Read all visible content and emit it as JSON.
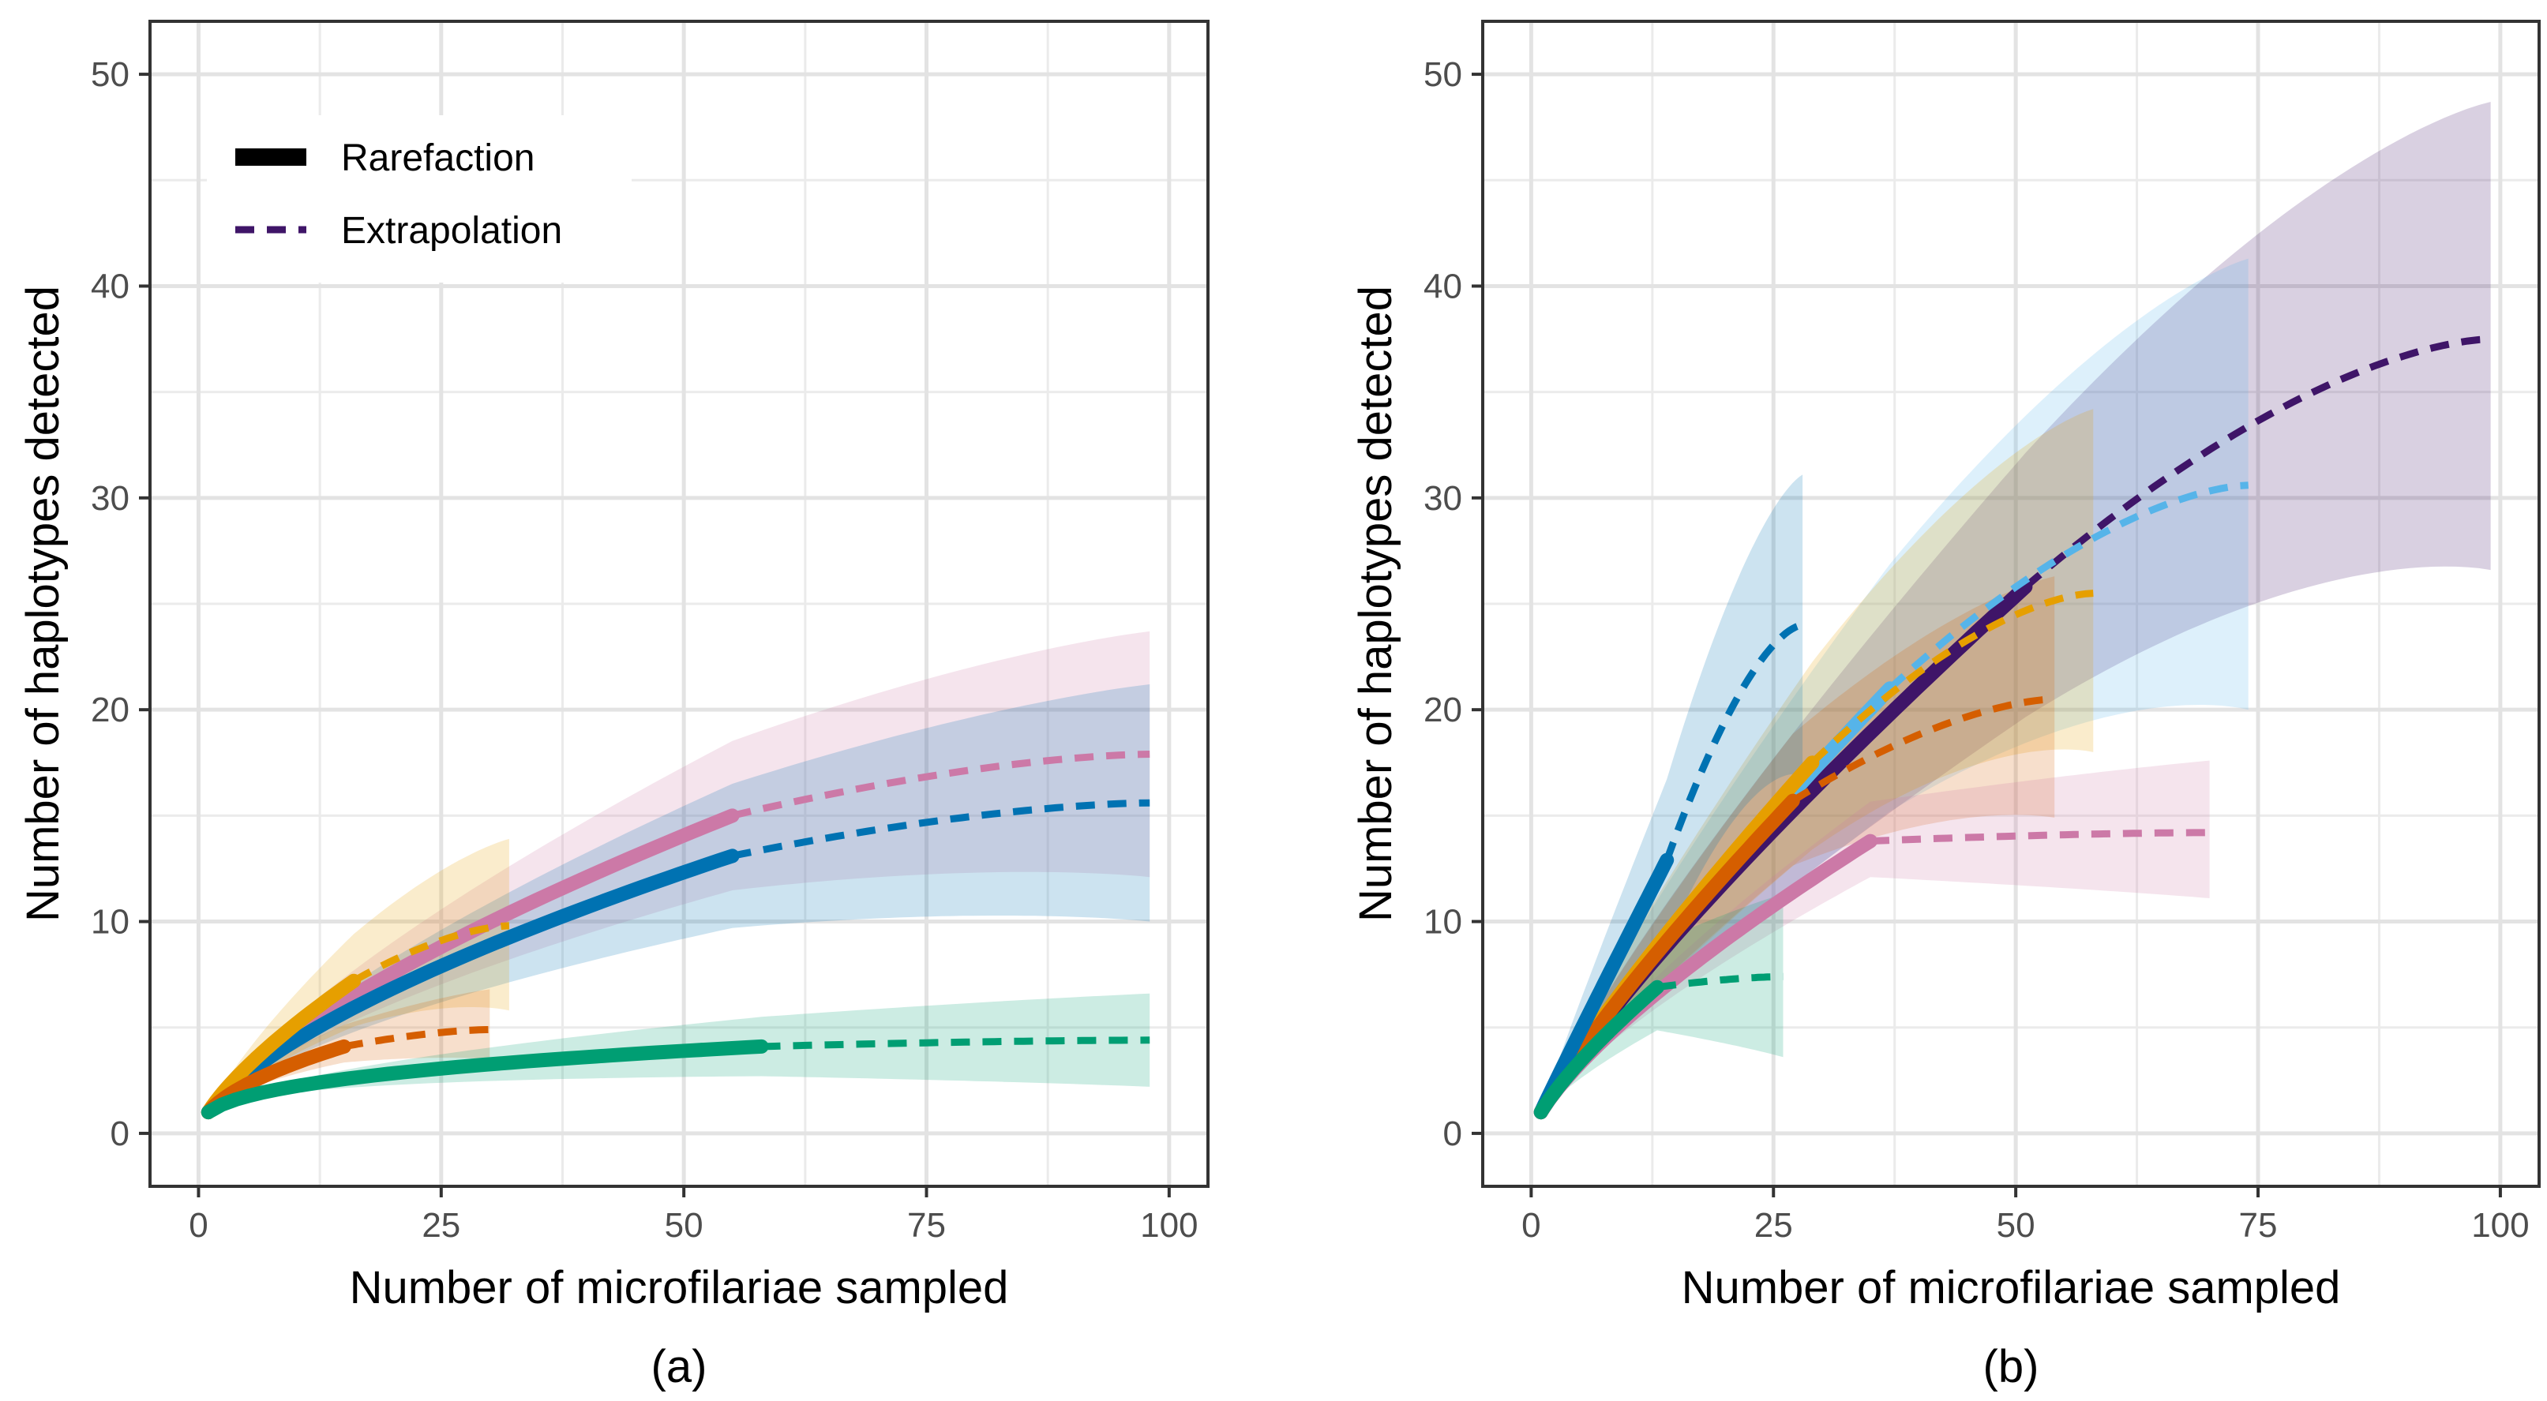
{
  "figure": {
    "panels": [
      "(a)",
      "(b)"
    ]
  },
  "legend": {
    "rarefaction_label": "Rarefaction",
    "extrapolation_label": "Extrapolation"
  },
  "chart_data": [
    {
      "type": "line",
      "panel_label": "(a)",
      "xlabel": "Number of microfilariae sampled",
      "ylabel": "Number of haplotypes detected",
      "xlim": [
        -5,
        104
      ],
      "ylim": [
        -2.5,
        52.5
      ],
      "xticks": [
        0,
        25,
        50,
        75,
        100
      ],
      "yticks": [
        0,
        10,
        20,
        30,
        40,
        50
      ],
      "grid": true,
      "legend": {
        "position": "top-left",
        "entries": [
          "Rarefaction",
          "Extrapolation"
        ]
      },
      "series": [
        {
          "name": "pink",
          "color": "#CC79A7",
          "n": 55,
          "s_obs": 15.0,
          "s_end": 17.9,
          "x_end": 98,
          "band_at_end": [
            12.1,
            23.7
          ]
        },
        {
          "name": "blue",
          "color": "#0072B2",
          "n": 55,
          "s_obs": 13.1,
          "s_end": 15.6,
          "x_end": 98,
          "band_at_end": [
            10.0,
            21.2
          ]
        },
        {
          "name": "yellow",
          "color": "#E69F00",
          "n": 16,
          "s_obs": 7.2,
          "s_end": 9.8,
          "x_end": 32,
          "band_at_end": [
            5.8,
            13.9
          ]
        },
        {
          "name": "orange",
          "color": "#D55E00",
          "n": 15,
          "s_obs": 4.1,
          "s_end": 4.9,
          "x_end": 30,
          "band_at_end": [
            3.5,
            6.8
          ]
        },
        {
          "name": "green",
          "color": "#009E73",
          "n": 58,
          "s_obs": 4.1,
          "s_end": 4.4,
          "x_end": 98,
          "band_at_end": [
            2.2,
            6.6
          ]
        }
      ]
    },
    {
      "type": "line",
      "panel_label": "(b)",
      "xlabel": "Number of microfilariae sampled",
      "ylabel": "Number of haplotypes detected",
      "xlim": [
        -5,
        104
      ],
      "ylim": [
        -2.5,
        52.5
      ],
      "xticks": [
        0,
        25,
        50,
        75,
        100
      ],
      "yticks": [
        0,
        10,
        20,
        30,
        40,
        50
      ],
      "grid": true,
      "series": [
        {
          "name": "purple",
          "color": "#3F1568",
          "n": 51,
          "s_obs": 25.8,
          "s_end": 37.5,
          "x_end": 99,
          "band_at_end": [
            26.6,
            48.7
          ]
        },
        {
          "name": "light-blue",
          "color": "#56B4E9",
          "n": 37,
          "s_obs": 21.0,
          "s_end": 30.6,
          "x_end": 74,
          "band_at_end": [
            20.0,
            41.3
          ]
        },
        {
          "name": "yellow",
          "color": "#E69F00",
          "n": 29,
          "s_obs": 17.5,
          "s_end": 25.5,
          "x_end": 58,
          "band_at_end": [
            18.0,
            34.2
          ]
        },
        {
          "name": "orange",
          "color": "#D55E00",
          "n": 27,
          "s_obs": 15.7,
          "s_end": 20.5,
          "x_end": 54,
          "band_at_end": [
            14.9,
            26.3
          ]
        },
        {
          "name": "blue",
          "color": "#0072B2",
          "n": 14,
          "s_obs": 12.9,
          "s_end": 24.0,
          "x_end": 28,
          "band_at_end": [
            16.9,
            31.1
          ]
        },
        {
          "name": "pink",
          "color": "#CC79A7",
          "n": 35,
          "s_obs": 13.8,
          "s_end": 14.2,
          "x_end": 70,
          "band_at_end": [
            11.1,
            17.6
          ]
        },
        {
          "name": "green",
          "color": "#009E73",
          "n": 13,
          "s_obs": 6.9,
          "s_end": 7.4,
          "x_end": 26,
          "band_at_end": [
            3.6,
            11.3
          ]
        }
      ]
    }
  ]
}
